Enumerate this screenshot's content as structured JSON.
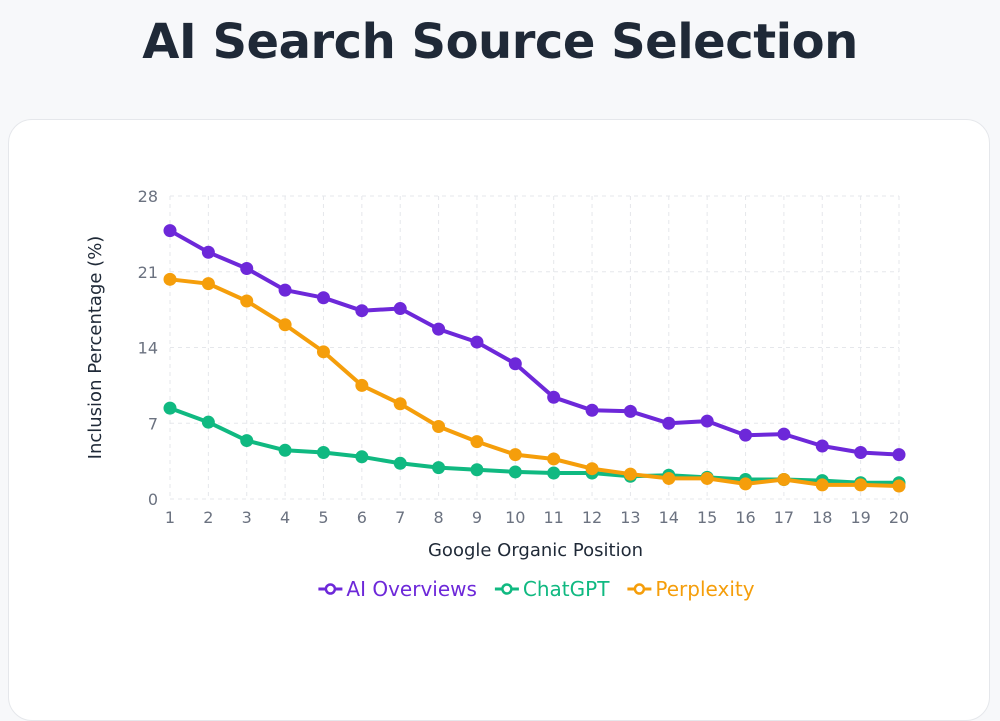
{
  "page": {
    "title": "AI Search Source Selection"
  },
  "chart_data": {
    "type": "line",
    "title": "AI Search Source Selection",
    "xlabel": "Google Organic Position",
    "ylabel": "Inclusion Percentage (%)",
    "x": [
      1,
      2,
      3,
      4,
      5,
      6,
      7,
      8,
      9,
      10,
      11,
      12,
      13,
      14,
      15,
      16,
      17,
      18,
      19,
      20
    ],
    "ylim": [
      0,
      28
    ],
    "yticks": [
      0,
      7,
      14,
      21,
      28
    ],
    "grid": true,
    "legend_position": "bottom",
    "series": [
      {
        "name": "AI Overviews",
        "color": "#6d28d9",
        "values": [
          24.8,
          22.8,
          21.3,
          19.3,
          18.6,
          17.4,
          17.6,
          15.7,
          14.5,
          12.5,
          9.4,
          8.2,
          8.1,
          7.0,
          7.2,
          5.9,
          6.0,
          4.9,
          4.3,
          4.1
        ]
      },
      {
        "name": "ChatGPT",
        "color": "#10b981",
        "values": [
          8.4,
          7.1,
          5.4,
          4.5,
          4.3,
          3.9,
          3.3,
          2.9,
          2.7,
          2.5,
          2.4,
          2.4,
          2.1,
          2.2,
          2.0,
          1.8,
          1.8,
          1.7,
          1.5,
          1.5
        ]
      },
      {
        "name": "Perplexity",
        "color": "#f59e0b",
        "values": [
          20.3,
          19.9,
          18.3,
          16.1,
          13.6,
          10.5,
          8.8,
          6.7,
          5.3,
          4.1,
          3.7,
          2.8,
          2.3,
          1.9,
          1.9,
          1.4,
          1.8,
          1.3,
          1.3,
          1.2
        ]
      }
    ]
  }
}
